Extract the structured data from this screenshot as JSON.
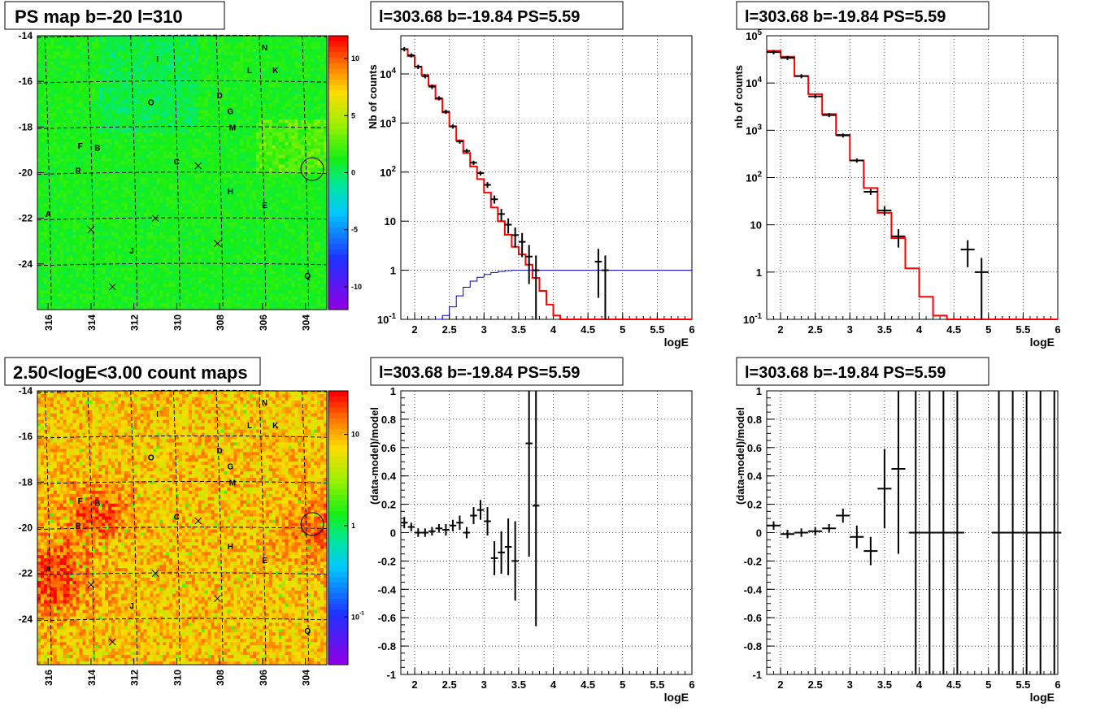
{
  "panels": {
    "map_top": {
      "title": "PS map b=-20 l=310",
      "x_ticks": [
        "316",
        "314",
        "312",
        "310",
        "308",
        "306",
        "304"
      ],
      "y_ticks": [
        "-14",
        "-16",
        "-18",
        "-20",
        "-22",
        "-24"
      ],
      "z_ticks": [
        "10",
        "5",
        "0",
        "-5",
        "-10"
      ],
      "sources": [
        "N",
        "I",
        "L",
        "K",
        "O",
        "D",
        "G",
        "M",
        "F",
        "B",
        "C",
        "R",
        "H",
        "A",
        "E",
        "J",
        "Q"
      ]
    },
    "map_bottom": {
      "title": "2.50<logE<3.00 count maps",
      "x_ticks": [
        "316",
        "314",
        "312",
        "310",
        "308",
        "306",
        "304"
      ],
      "y_ticks": [
        "-14",
        "-16",
        "-18",
        "-20",
        "-22",
        "-24"
      ],
      "z_ticks": [
        "10",
        "1",
        "10^-1"
      ],
      "sources": [
        "N",
        "I",
        "L",
        "K",
        "O",
        "D",
        "G",
        "M",
        "F",
        "B",
        "C",
        "R",
        "H",
        "A",
        "E",
        "J",
        "Q"
      ]
    },
    "spec_left": {
      "title": "l=303.68 b=-19.84 PS=5.59",
      "ylabel": "Nb of counts",
      "xlabel": "logE",
      "x_ticks": [
        "2",
        "2.5",
        "3",
        "3.5",
        "4",
        "4.5",
        "5",
        "5.5",
        "6"
      ],
      "y_ticks": [
        "10^-1",
        "1",
        "10",
        "10^2",
        "10^3",
        "10^4"
      ]
    },
    "spec_right": {
      "title": "l=303.68 b=-19.84 PS=5.59",
      "ylabel": "nb of counts",
      "xlabel": "logE",
      "x_ticks": [
        "2",
        "2.5",
        "3",
        "3.5",
        "4",
        "4.5",
        "5",
        "5.5",
        "6"
      ],
      "y_ticks": [
        "10^-1",
        "1",
        "10",
        "10^2",
        "10^3",
        "10^4",
        "10^5"
      ]
    },
    "res_left": {
      "title": "l=303.68 b=-19.84 PS=5.59",
      "ylabel": "(data-model)/model",
      "xlabel": "logE",
      "x_ticks": [
        "2",
        "2.5",
        "3",
        "3.5",
        "4",
        "4.5",
        "5",
        "5.5",
        "6"
      ],
      "y_ticks": [
        "1",
        "0.8",
        "0.6",
        "0.4",
        "0.2",
        "0",
        "-0.2",
        "-0.4",
        "-0.6",
        "-0.8",
        "-1"
      ]
    },
    "res_right": {
      "title": "l=303.68 b=-19.84 PS=5.59",
      "ylabel": "(data-model)/model",
      "xlabel": "logE",
      "x_ticks": [
        "2",
        "2.5",
        "3",
        "3.5",
        "4",
        "4.5",
        "5",
        "5.5",
        "6"
      ],
      "y_ticks": [
        "1",
        "0.8",
        "0.6",
        "0.4",
        "0.2",
        "0",
        "-0.2",
        "-0.4",
        "-0.6",
        "-0.8",
        "-1"
      ]
    }
  },
  "chart_data": [
    {
      "type": "heatmap",
      "title": "PS map b=-20 l=310",
      "x_range": [
        316.5,
        303.0
      ],
      "y_range": [
        -26,
        -14
      ],
      "z_range": [
        -12,
        12
      ],
      "colorscale": "rainbow",
      "sources": [
        {
          "label": "N",
          "l": 305.9,
          "b": -14.5
        },
        {
          "label": "I",
          "l": 310.9,
          "b": -15.0
        },
        {
          "label": "L",
          "l": 306.6,
          "b": -15.5
        },
        {
          "label": "K",
          "l": 305.4,
          "b": -15.5
        },
        {
          "label": "O",
          "l": 311.2,
          "b": -16.9
        },
        {
          "label": "D",
          "l": 308.0,
          "b": -16.6
        },
        {
          "label": "G",
          "l": 307.5,
          "b": -17.3
        },
        {
          "label": "M",
          "l": 307.4,
          "b": -18.0
        },
        {
          "label": "F",
          "l": 314.5,
          "b": -18.8
        },
        {
          "label": "B",
          "l": 313.7,
          "b": -18.9
        },
        {
          "label": "C",
          "l": 310.0,
          "b": -19.5
        },
        {
          "label": "R",
          "l": 314.6,
          "b": -19.9
        },
        {
          "label": "H",
          "l": 307.5,
          "b": -20.8
        },
        {
          "label": "A",
          "l": 316.0,
          "b": -21.8
        },
        {
          "label": "E",
          "l": 305.9,
          "b": -21.4
        },
        {
          "label": "J",
          "l": 312.1,
          "b": -23.4
        },
        {
          "label": "Q",
          "l": 303.9,
          "b": -24.5
        }
      ]
    },
    {
      "type": "heatmap",
      "title": "2.50<logE<3.00 count maps",
      "x_range": [
        316.5,
        303.0
      ],
      "y_range": [
        -26,
        -14
      ],
      "z_scale": "log",
      "z_range": [
        0.03,
        30
      ]
    },
    {
      "type": "line",
      "title": "l=303.68 b=-19.84 PS=5.59",
      "xlabel": "logE",
      "ylabel": "Nb of counts",
      "xlim": [
        1.8,
        6
      ],
      "ylim": [
        0.1,
        60000
      ],
      "yscale": "log",
      "data": {
        "x": [
          1.85,
          1.95,
          2.05,
          2.15,
          2.25,
          2.35,
          2.45,
          2.55,
          2.65,
          2.75,
          2.85,
          2.95,
          3.05,
          3.15,
          3.25,
          3.35,
          3.45,
          3.55,
          3.65,
          3.75,
          4.65,
          4.75
        ],
        "y": [
          32000,
          24000,
          14000,
          9000,
          5500,
          3200,
          1700,
          850,
          420,
          270,
          155,
          95,
          55,
          28,
          14,
          8.5,
          5.2,
          3.8,
          1.9,
          1.0,
          1.5,
          1.0
        ]
      },
      "series": [
        {
          "name": "model",
          "color": "#ff0000",
          "x": [
            1.8,
            1.9,
            2.0,
            2.1,
            2.2,
            2.3,
            2.4,
            2.5,
            2.6,
            2.7,
            2.8,
            2.9,
            3.0,
            3.1,
            3.2,
            3.3,
            3.4,
            3.5,
            3.6,
            3.7,
            3.8,
            3.9,
            4.0,
            4.1,
            4.2,
            6.0
          ],
          "y": [
            32000,
            23000,
            14000,
            9500,
            5800,
            3100,
            1650,
            860,
            440,
            245,
            130,
            72,
            38,
            19,
            10,
            5.3,
            3.0,
            2.1,
            1.3,
            0.7,
            0.38,
            0.2,
            0.12,
            0.09,
            0.09,
            0.09
          ]
        },
        {
          "name": "ps",
          "color": "#0000cc",
          "x": [
            2.3,
            2.4,
            2.5,
            2.6,
            2.7,
            2.8,
            2.9,
            3.0,
            3.1,
            3.2,
            3.3,
            3.4,
            3.5,
            3.6,
            3.7,
            3.8,
            6.0
          ],
          "y": [
            0.1,
            0.12,
            0.18,
            0.3,
            0.45,
            0.6,
            0.72,
            0.82,
            0.9,
            0.95,
            0.98,
            1.0,
            1.0,
            1.0,
            1.0,
            1.0,
            1.0
          ]
        }
      ]
    },
    {
      "type": "line",
      "title": "l=303.68 b=-19.84 PS=5.59",
      "xlabel": "logE",
      "ylabel": "nb of counts",
      "xlim": [
        1.8,
        6
      ],
      "ylim": [
        0.1,
        100000
      ],
      "yscale": "log",
      "data": {
        "x": [
          1.9,
          2.1,
          2.3,
          2.5,
          2.7,
          2.9,
          3.1,
          3.3,
          3.5,
          3.7,
          4.7,
          4.9
        ],
        "y": [
          45000,
          34000,
          14000,
          5200,
          2100,
          780,
          230,
          50,
          20,
          5.7,
          3.0,
          1.0
        ]
      },
      "series": [
        {
          "name": "model",
          "color": "#ff0000",
          "x": [
            1.8,
            2.0,
            2.2,
            2.4,
            2.6,
            2.8,
            3.0,
            3.2,
            3.4,
            3.6,
            3.8,
            4.0,
            4.2,
            4.4,
            6.0
          ],
          "y": [
            48000,
            36000,
            14000,
            5800,
            2200,
            800,
            230,
            60,
            18,
            5.2,
            1.2,
            0.3,
            0.12,
            0.09,
            0.09
          ]
        }
      ]
    },
    {
      "type": "scatter",
      "title": "l=303.68 b=-19.84 PS=5.59",
      "xlabel": "logE",
      "ylabel": "(data-model)/model",
      "xlim": [
        1.8,
        6
      ],
      "ylim": [
        -1,
        1
      ],
      "data": {
        "x": [
          1.85,
          1.95,
          2.05,
          2.15,
          2.25,
          2.35,
          2.45,
          2.55,
          2.65,
          2.75,
          2.85,
          2.95,
          3.05,
          3.15,
          3.25,
          3.35,
          3.45,
          3.65,
          3.75
        ],
        "y": [
          0.07,
          0.04,
          0.0,
          0.0,
          0.01,
          0.03,
          0.02,
          0.05,
          0.07,
          0.0,
          0.12,
          0.16,
          0.08,
          -0.18,
          -0.14,
          -0.1,
          -0.2,
          0.63,
          0.19
        ],
        "err": [
          0.04,
          0.03,
          0.03,
          0.03,
          0.03,
          0.03,
          0.04,
          0.04,
          0.05,
          0.04,
          0.06,
          0.07,
          0.1,
          0.12,
          0.15,
          0.2,
          0.28,
          0.8,
          0.85
        ]
      }
    },
    {
      "type": "scatter",
      "title": "l=303.68 b=-19.84 PS=5.59",
      "xlabel": "logE",
      "ylabel": "(data-model)/model",
      "xlim": [
        1.8,
        6
      ],
      "ylim": [
        -1,
        1
      ],
      "data": {
        "x": [
          1.9,
          2.1,
          2.3,
          2.5,
          2.7,
          2.9,
          3.1,
          3.3,
          3.5,
          3.7,
          3.95,
          4.15,
          4.35,
          4.55,
          5.15,
          5.35,
          5.55,
          5.75,
          5.95
        ],
        "y": [
          0.05,
          -0.01,
          0.0,
          0.01,
          0.03,
          0.12,
          -0.03,
          -0.13,
          0.31,
          0.45,
          0.0,
          0.0,
          0.0,
          0.0,
          0.0,
          0.0,
          0.0,
          0.0,
          0.0
        ],
        "err": [
          0.03,
          0.03,
          0.03,
          0.03,
          0.03,
          0.05,
          0.08,
          0.1,
          0.28,
          0.6,
          2.0,
          2.0,
          2.0,
          2.0,
          2.0,
          2.0,
          2.0,
          2.0,
          2.0
        ]
      }
    }
  ]
}
